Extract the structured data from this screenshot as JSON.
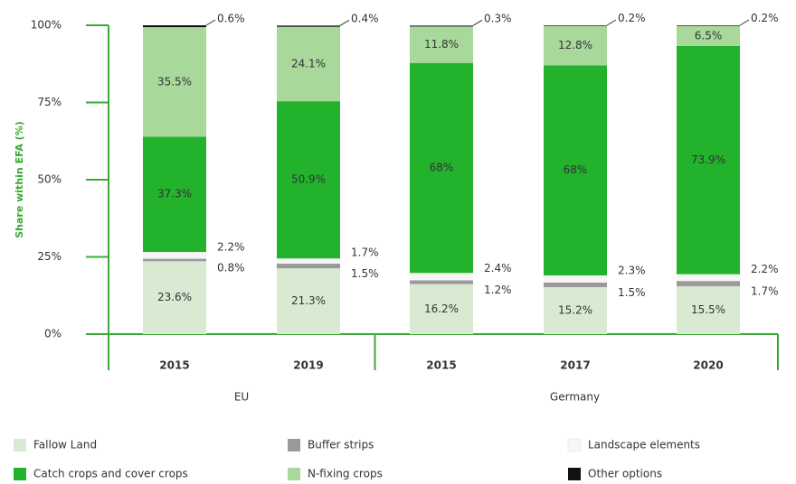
{
  "chart_data": {
    "type": "stacked_bar",
    "y_label": "Share within EFA (%)",
    "categories": [
      "2015",
      "2019",
      "2015",
      "2017",
      "2020"
    ],
    "groups": [
      {
        "name": "EU",
        "span": 2
      },
      {
        "name": "Germany",
        "span": 3
      }
    ],
    "ylim": [
      0,
      100
    ],
    "yticks": [
      {
        "value": 0,
        "label": "0%"
      },
      {
        "value": 25,
        "label": "25%"
      },
      {
        "value": 50,
        "label": "50%"
      },
      {
        "value": 75,
        "label": "75%"
      },
      {
        "value": 100,
        "label": "100%"
      }
    ],
    "series": [
      {
        "name": "Fallow Land",
        "color": "#d8ebd2",
        "values": [
          23.6,
          21.3,
          16.2,
          15.2,
          15.5
        ],
        "value_labels": [
          "23.6%",
          "21.3%",
          "16.2%",
          "15.2%",
          "15.5%"
        ]
      },
      {
        "name": "Buffer strips",
        "color": "#9a9a9a",
        "values": [
          0.8,
          1.5,
          1.2,
          1.5,
          1.7
        ],
        "value_labels": [
          "0.8%",
          "1.5%",
          "1.2%",
          "1.5%",
          "1.7%"
        ]
      },
      {
        "name": "Landscape elements",
        "color": "#f6f6f6",
        "values": [
          2.2,
          1.7,
          2.4,
          2.3,
          2.2
        ],
        "value_labels": [
          "2.2%",
          "1.7%",
          "2.4%",
          "2.3%",
          "2.2%"
        ]
      },
      {
        "name": "Catch crops and cover crops",
        "color": "#22b22b",
        "values": [
          37.3,
          50.9,
          68,
          68,
          73.9
        ],
        "value_labels": [
          "37.3%",
          "50.9%",
          "68%",
          "68%",
          "73.9%"
        ]
      },
      {
        "name": "N-fixing crops",
        "color": "#a9d89b",
        "values": [
          35.5,
          24.1,
          11.8,
          12.8,
          6.5
        ],
        "value_labels": [
          "35.5%",
          "24.1%",
          "11.8%",
          "12.8%",
          "6.5%"
        ]
      },
      {
        "name": "Other options",
        "color": "#111111",
        "values": [
          0.6,
          0.4,
          0.3,
          0.2,
          0.2
        ],
        "value_labels": [
          "0.6%",
          "0.4%",
          "0.3%",
          "0.2%",
          "0.2%"
        ]
      }
    ]
  }
}
